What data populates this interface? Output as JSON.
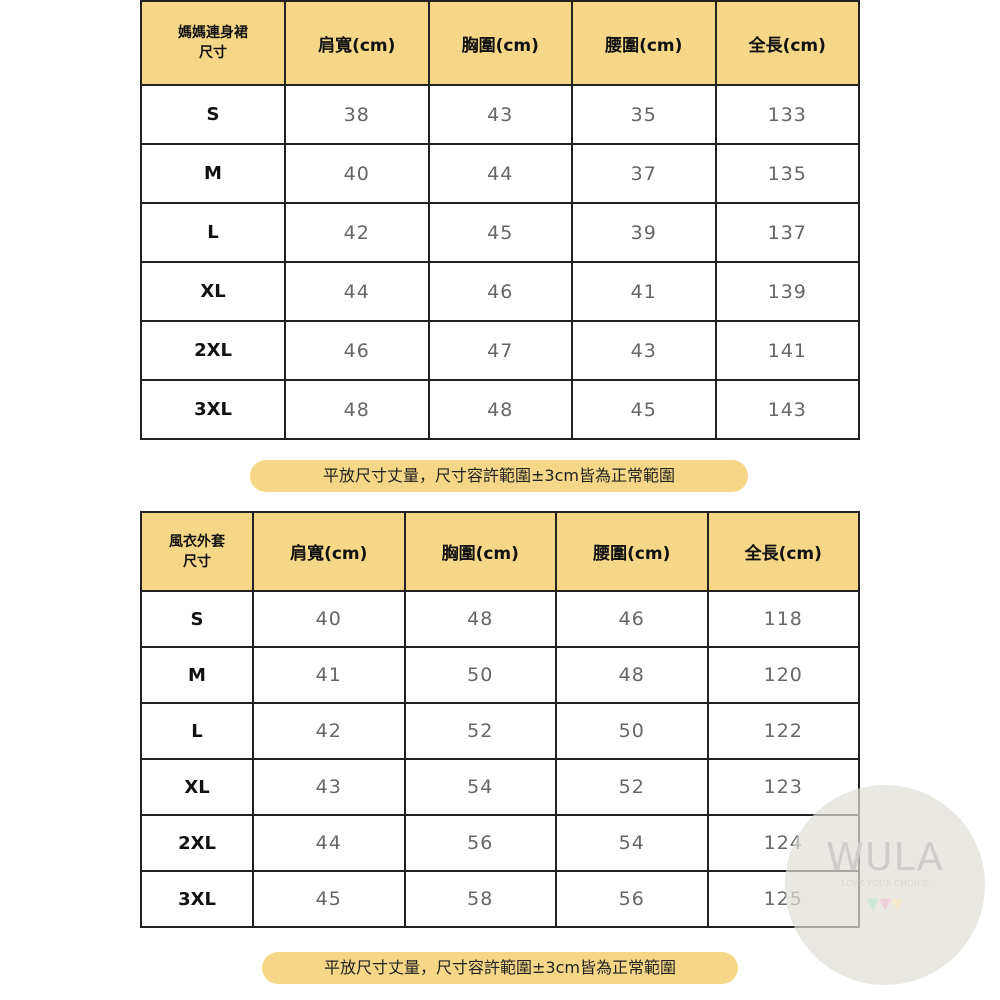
{
  "table1": {
    "headers": [
      "媽媽連身裙\n尺寸",
      "肩寬(cm)",
      "胸圍(cm)",
      "腰圍(cm)",
      "全長(cm)"
    ],
    "header_first_lines": [
      "媽媽連身裙",
      "尺寸"
    ],
    "rows": [
      [
        "S",
        "38",
        "43",
        "35",
        "133"
      ],
      [
        "M",
        "40",
        "44",
        "37",
        "135"
      ],
      [
        "L",
        "42",
        "45",
        "39",
        "137"
      ],
      [
        "XL",
        "44",
        "46",
        "41",
        "139"
      ],
      [
        "2XL",
        "46",
        "47",
        "43",
        "141"
      ],
      [
        "3XL",
        "48",
        "48",
        "45",
        "143"
      ]
    ]
  },
  "note1": "平放尺寸丈量，尺寸容許範圍±3cm皆為正常範圍",
  "table2": {
    "header_first_lines": [
      "風衣外套",
      "尺寸"
    ],
    "headers": [
      "風衣外套\n尺寸",
      "肩寬(cm)",
      "胸圍(cm)",
      "腰圍(cm)",
      "全長(cm)"
    ],
    "rows": [
      [
        "S",
        "40",
        "48",
        "46",
        "118"
      ],
      [
        "M",
        "41",
        "50",
        "48",
        "120"
      ],
      [
        "L",
        "42",
        "52",
        "50",
        "122"
      ],
      [
        "XL",
        "43",
        "54",
        "52",
        "123"
      ],
      [
        "2XL",
        "44",
        "56",
        "54",
        "124"
      ],
      [
        "3XL",
        "45",
        "58",
        "56",
        "125"
      ]
    ]
  },
  "note2": "平放尺寸丈量，尺寸容許範圍±3cm皆為正常範圍",
  "watermark": {
    "text": "WULA",
    "tagline": "LOVE YOUR CHOICE"
  },
  "colors": {
    "header_bg": "#f6d787",
    "value_text": "#666666"
  }
}
